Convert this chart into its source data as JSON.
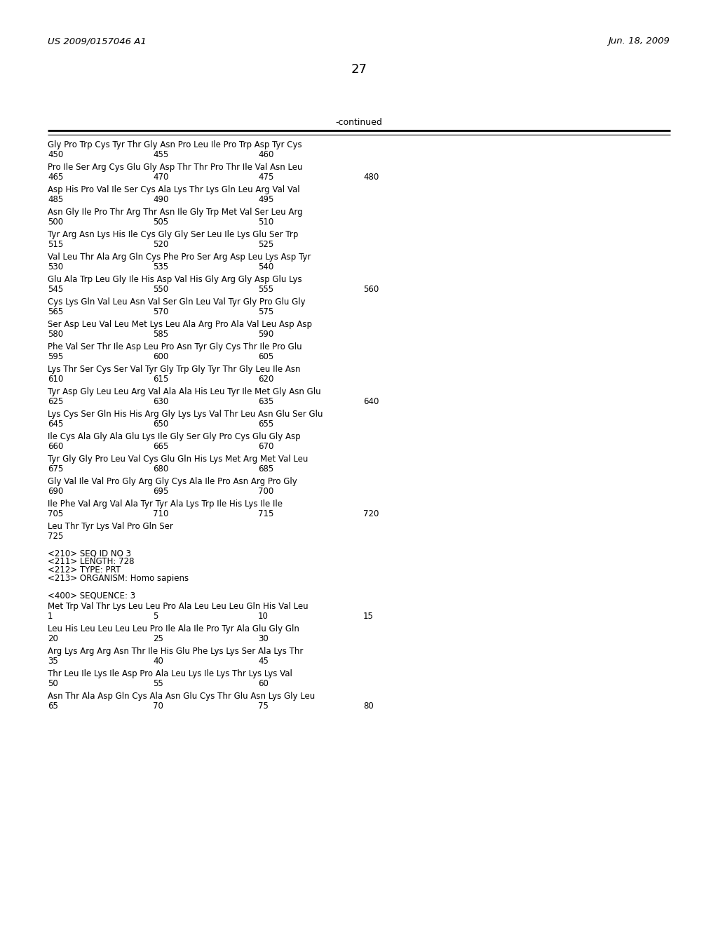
{
  "header_left": "US 2009/0157046 A1",
  "header_right": "Jun. 18, 2009",
  "page_number": "27",
  "continued_label": "-continued",
  "background_color": "#ffffff",
  "text_color": "#000000",
  "seq_data": [
    {
      "text": "Gly Pro Trp Cys Tyr Thr Gly Asn Pro Leu Ile Pro Trp Asp Tyr Cys",
      "nums": [
        [
          "450",
          0
        ],
        [
          "455",
          150
        ],
        [
          "460",
          300
        ]
      ]
    },
    {
      "text": "Pro Ile Ser Arg Cys Glu Gly Asp Thr Thr Pro Thr Ile Val Asn Leu",
      "nums": [
        [
          "465",
          0
        ],
        [
          "470",
          150
        ],
        [
          "475",
          300
        ],
        [
          "480",
          450
        ]
      ]
    },
    {
      "text": "Asp His Pro Val Ile Ser Cys Ala Lys Thr Lys Gln Leu Arg Val Val",
      "nums": [
        [
          "485",
          0
        ],
        [
          "490",
          150
        ],
        [
          "495",
          300
        ]
      ]
    },
    {
      "text": "Asn Gly Ile Pro Thr Arg Thr Asn Ile Gly Trp Met Val Ser Leu Arg",
      "nums": [
        [
          "500",
          0
        ],
        [
          "505",
          150
        ],
        [
          "510",
          300
        ]
      ]
    },
    {
      "text": "Tyr Arg Asn Lys His Ile Cys Gly Gly Ser Leu Ile Lys Glu Ser Trp",
      "nums": [
        [
          "515",
          0
        ],
        [
          "520",
          150
        ],
        [
          "525",
          300
        ]
      ]
    },
    {
      "text": "Val Leu Thr Ala Arg Gln Cys Phe Pro Ser Arg Asp Leu Lys Asp Tyr",
      "nums": [
        [
          "530",
          0
        ],
        [
          "535",
          150
        ],
        [
          "540",
          300
        ]
      ]
    },
    {
      "text": "Glu Ala Trp Leu Gly Ile His Asp Val His Gly Arg Gly Asp Glu Lys",
      "nums": [
        [
          "545",
          0
        ],
        [
          "550",
          150
        ],
        [
          "555",
          300
        ],
        [
          "560",
          450
        ]
      ]
    },
    {
      "text": "Cys Lys Gln Val Leu Asn Val Ser Gln Leu Val Tyr Gly Pro Glu Gly",
      "nums": [
        [
          "565",
          0
        ],
        [
          "570",
          150
        ],
        [
          "575",
          300
        ]
      ]
    },
    {
      "text": "Ser Asp Leu Val Leu Met Lys Leu Ala Arg Pro Ala Val Leu Asp Asp",
      "nums": [
        [
          "580",
          0
        ],
        [
          "585",
          150
        ],
        [
          "590",
          300
        ]
      ]
    },
    {
      "text": "Phe Val Ser Thr Ile Asp Leu Pro Asn Tyr Gly Cys Thr Ile Pro Glu",
      "nums": [
        [
          "595",
          0
        ],
        [
          "600",
          150
        ],
        [
          "605",
          300
        ]
      ]
    },
    {
      "text": "Lys Thr Ser Cys Ser Val Tyr Gly Trp Gly Tyr Thr Gly Leu Ile Asn",
      "nums": [
        [
          "610",
          0
        ],
        [
          "615",
          150
        ],
        [
          "620",
          300
        ]
      ]
    },
    {
      "text": "Tyr Asp Gly Leu Leu Arg Val Ala Ala His Leu Tyr Ile Met Gly Asn Glu",
      "nums": [
        [
          "625",
          0
        ],
        [
          "630",
          150
        ],
        [
          "635",
          300
        ],
        [
          "640",
          450
        ]
      ]
    },
    {
      "text": "Lys Cys Ser Gln His His Arg Gly Lys Lys Val Thr Leu Asn Glu Ser Glu",
      "nums": [
        [
          "645",
          0
        ],
        [
          "650",
          150
        ],
        [
          "655",
          300
        ]
      ]
    },
    {
      "text": "Ile Cys Ala Gly Ala Glu Lys Ile Gly Ser Gly Pro Cys Glu Gly Asp",
      "nums": [
        [
          "660",
          0
        ],
        [
          "665",
          150
        ],
        [
          "670",
          300
        ]
      ]
    },
    {
      "text": "Tyr Gly Gly Pro Leu Val Cys Glu Gln His Lys Met Arg Met Val Leu",
      "nums": [
        [
          "675",
          0
        ],
        [
          "680",
          150
        ],
        [
          "685",
          300
        ]
      ]
    },
    {
      "text": "Gly Val Ile Val Pro Gly Arg Gly Cys Ala Ile Pro Asn Arg Pro Gly",
      "nums": [
        [
          "690",
          0
        ],
        [
          "695",
          150
        ],
        [
          "700",
          300
        ]
      ]
    },
    {
      "text": "Ile Phe Val Arg Val Ala Tyr Tyr Ala Lys Trp Ile His Lys Ile Ile",
      "nums": [
        [
          "705",
          0
        ],
        [
          "710",
          150
        ],
        [
          "715",
          300
        ],
        [
          "720",
          450
        ]
      ]
    },
    {
      "text": "Leu Thr Tyr Lys Val Pro Gln Ser",
      "nums": [
        [
          "725",
          0
        ]
      ]
    }
  ],
  "meta_lines": [
    "<210> SEQ ID NO 3",
    "<211> LENGTH: 728",
    "<212> TYPE: PRT",
    "<213> ORGANISM: Homo sapiens",
    "",
    "<400> SEQUENCE: 3"
  ],
  "bottom_seq_data": [
    {
      "text": "Met Trp Val Thr Lys Leu Leu Pro Ala Leu Leu Leu Gln His Val Leu",
      "nums": [
        [
          "1",
          0
        ],
        [
          "5",
          150
        ],
        [
          "10",
          300
        ],
        [
          "15",
          450
        ]
      ]
    },
    {
      "text": "Leu His Leu Leu Leu Leu Pro Ile Ala Ile Pro Tyr Ala Glu Gly Gln",
      "nums": [
        [
          "20",
          0
        ],
        [
          "25",
          150
        ],
        [
          "30",
          300
        ]
      ]
    },
    {
      "text": "Arg Lys Arg Arg Asn Thr Ile His Glu Phe Lys Lys Ser Ala Lys Thr",
      "nums": [
        [
          "35",
          0
        ],
        [
          "40",
          150
        ],
        [
          "45",
          300
        ]
      ]
    },
    {
      "text": "Thr Leu Ile Lys Ile Asp Pro Ala Leu Lys Ile Lys Thr Lys Lys Val",
      "nums": [
        [
          "50",
          0
        ],
        [
          "55",
          150
        ],
        [
          "60",
          300
        ]
      ]
    },
    {
      "text": "Asn Thr Ala Asp Gln Cys Ala Asn Glu Cys Thr Glu Asn Lys Gly Leu",
      "nums": [
        [
          "65",
          0
        ],
        [
          "70",
          150
        ],
        [
          "75",
          300
        ],
        [
          "80",
          450
        ]
      ]
    }
  ]
}
